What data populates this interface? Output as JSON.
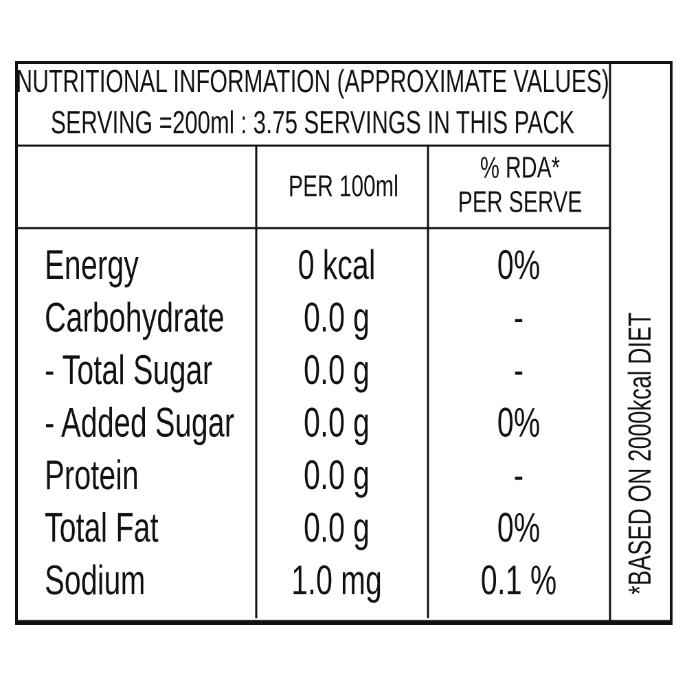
{
  "header": {
    "title": [
      "NUTRITIONAL INFORMATION (APPROXIMATE VALUES)",
      "SERVING =200ml : 3.75 SERVINGS IN THIS PACK"
    ]
  },
  "table": {
    "per_100ml_header": "PER 100ml",
    "rda_header": [
      "% RDA*",
      "PER SERVE"
    ],
    "rows": [
      [
        "Energy",
        "0 kcal",
        "0%"
      ],
      [
        "Carbohydrate",
        "0.0 g",
        "-"
      ],
      [
        "- Total Sugar",
        "0.0 g",
        "-"
      ],
      [
        "- Added Sugar",
        "0.0 g",
        "0%"
      ],
      [
        "Protein",
        "0.0 g",
        "-"
      ],
      [
        "Total Fat",
        "0.0 g",
        "0%"
      ],
      [
        "Sodium",
        "1.0 mg",
        "0.1 %"
      ]
    ]
  },
  "footnote": "*BASED ON 2000kcal DIET"
}
